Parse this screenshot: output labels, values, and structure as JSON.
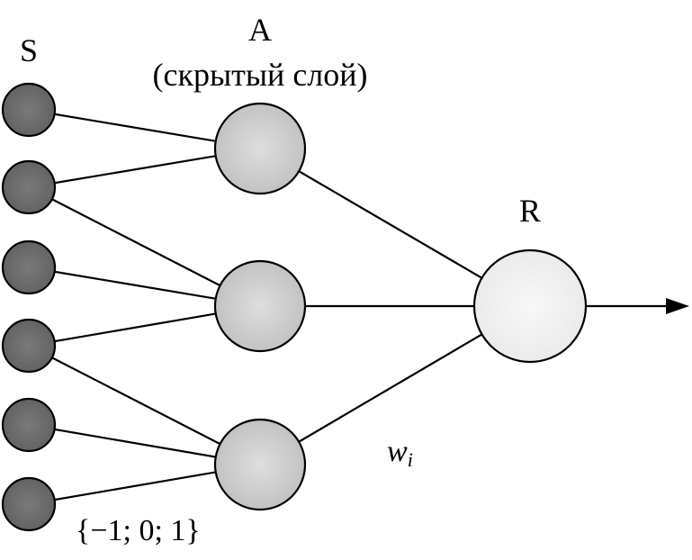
{
  "labels": {
    "s_layer": "S",
    "a_layer": "A",
    "a_layer_sub": "(скрытый слой)",
    "r_layer": "R",
    "weight": "w",
    "weight_subscript": "i",
    "input_values": "{−1; 0; 1}"
  },
  "colors": {
    "s_node_fill": "#6e6e6e",
    "a_node_fill": "#cfcfcf",
    "r_node_fill": "#f2f2f2",
    "stroke": "#000000"
  },
  "network": {
    "s_count": 6,
    "a_count": 3,
    "r_count": 1,
    "connections": [
      {
        "from": "S1",
        "to": "A1"
      },
      {
        "from": "S2",
        "to": "A1"
      },
      {
        "from": "S2",
        "to": "A2"
      },
      {
        "from": "S3",
        "to": "A2"
      },
      {
        "from": "S4",
        "to": "A2"
      },
      {
        "from": "S4",
        "to": "A3"
      },
      {
        "from": "S5",
        "to": "A3"
      },
      {
        "from": "S6",
        "to": "A3"
      },
      {
        "from": "A1",
        "to": "R"
      },
      {
        "from": "A2",
        "to": "R"
      },
      {
        "from": "A3",
        "to": "R"
      }
    ]
  }
}
